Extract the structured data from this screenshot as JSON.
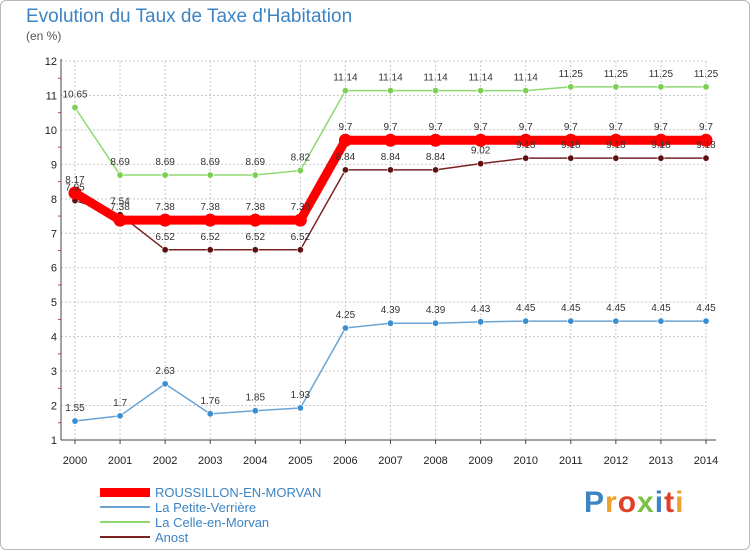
{
  "header": {
    "title": "Evolution du Taux de Taxe d'Habitation",
    "subtitle": "(en %)"
  },
  "colors": {
    "title": "#3c84c4",
    "grid": "#c8c8c8",
    "axis": "#444444"
  },
  "logo": {
    "text": "Proxiti"
  },
  "chart_data": {
    "type": "line",
    "title": "Evolution du Taux de Taxe d'Habitation",
    "ylabel": "(en %)",
    "xlabel": "",
    "ylim": [
      1,
      12
    ],
    "grid": true,
    "legend_position": "bottom-left",
    "y_ticks": [
      "1",
      "2",
      "3",
      "4",
      "5",
      "6",
      "7",
      "8",
      "9",
      "10",
      "11",
      "12"
    ],
    "categories": [
      "2000",
      "2001",
      "2002",
      "2003",
      "2004",
      "2005",
      "2006",
      "2007",
      "2008",
      "2009",
      "2010",
      "2011",
      "2012",
      "2013",
      "2014"
    ],
    "series": [
      {
        "name": "ROUSSILLON-EN-MORVAN",
        "color": "#ff0000",
        "marker": "#ff0000",
        "emphasis": true,
        "values": [
          8.17,
          7.38,
          7.38,
          7.38,
          7.38,
          7.38,
          9.7,
          9.7,
          9.7,
          9.7,
          9.7,
          9.7,
          9.7,
          9.7,
          9.7
        ],
        "labels": [
          "8.17",
          "7.38",
          "7.38",
          "7.38",
          "7.38",
          "7.38",
          "9.7",
          "9.7",
          "9.7",
          "9.7",
          "9.7",
          "9.7",
          "9.7",
          "9.7",
          "9.7"
        ]
      },
      {
        "name": "La Petite-Verrière",
        "color": "#6aa4d4",
        "marker": "#3b8ed0",
        "emphasis": false,
        "values": [
          1.55,
          1.7,
          2.63,
          1.76,
          1.85,
          1.93,
          4.25,
          4.39,
          4.39,
          4.43,
          4.45,
          4.45,
          4.45,
          4.45,
          4.45
        ],
        "labels": [
          "1.55",
          "1.7",
          "2.63",
          "1.76",
          "1.85",
          "1.93",
          "4.25",
          "4.39",
          "4.39",
          "4.43",
          "4.45",
          "4.45",
          "4.45",
          "4.45",
          "4.45"
        ]
      },
      {
        "name": "La Celle-en-Morvan",
        "color": "#8fd870",
        "marker": "#7ccf55",
        "emphasis": false,
        "values": [
          10.65,
          8.69,
          8.69,
          8.69,
          8.69,
          8.82,
          11.14,
          11.14,
          11.14,
          11.14,
          11.14,
          11.25,
          11.25,
          11.25,
          11.25
        ],
        "labels": [
          "10.65",
          "8.69",
          "8.69",
          "8.69",
          "8.69",
          "8.82",
          "11.14",
          "11.14",
          "11.14",
          "11.14",
          "11.14",
          "11.25",
          "11.25",
          "11.25",
          "11.25"
        ]
      },
      {
        "name": "Anost",
        "color": "#7b2323",
        "marker": "#5e1010",
        "emphasis": false,
        "values": [
          7.95,
          7.54,
          6.52,
          6.52,
          6.52,
          6.52,
          8.84,
          8.84,
          8.84,
          9.02,
          9.18,
          9.18,
          9.18,
          9.18,
          9.18
        ],
        "labels": [
          "7.95",
          "7.54",
          "6.52",
          "6.52",
          "6.52",
          "6.52",
          "8.84",
          "8.84",
          "8.84",
          "9.02",
          "9.18",
          "9.18",
          "9.18",
          "9.18",
          "9.18"
        ]
      }
    ]
  }
}
